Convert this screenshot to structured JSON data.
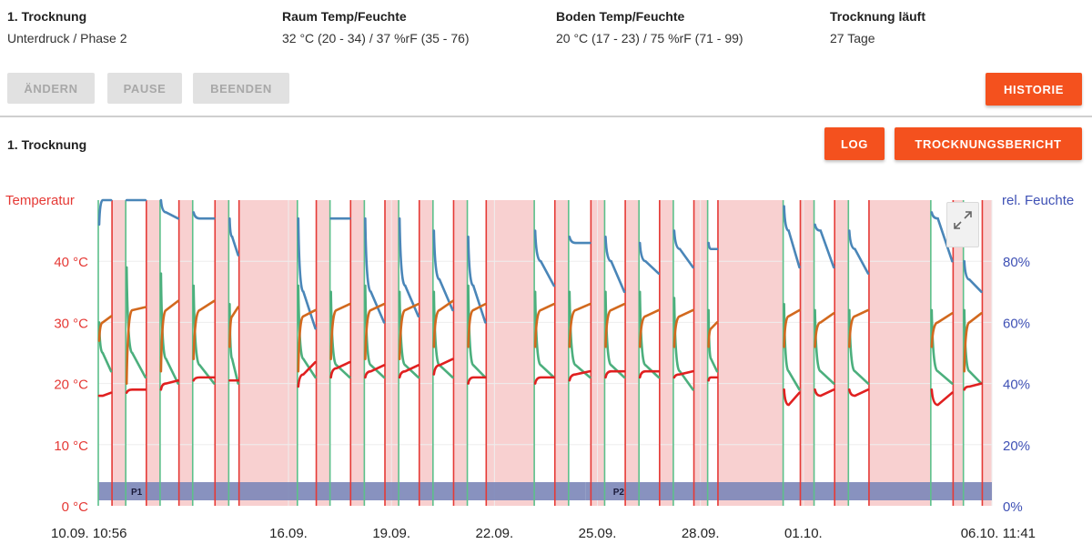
{
  "header": {
    "drying": {
      "title": "1. Trocknung",
      "value": "Unterdruck / Phase 2"
    },
    "room": {
      "title": "Raum Temp/Feuchte",
      "value": "32 °C (20 - 34) / 37 %rF (35 - 76)"
    },
    "floor": {
      "title": "Boden Temp/Feuchte",
      "value": "20 °C (17 - 23) / 75 %rF (71 - 99)"
    },
    "running": {
      "title": "Trocknung läuft",
      "value": "27 Tage"
    }
  },
  "toolbar": {
    "change_label": "ÄNDERN",
    "pause_label": "PAUSE",
    "end_label": "BEENDEN",
    "history_label": "HISTORIE"
  },
  "section": {
    "title": "1. Trocknung",
    "log_label": "LOG",
    "report_label": "TROCKNUNGSBERICHT"
  },
  "colors": {
    "accent": "#f4511e",
    "temp_axis": "#e53935",
    "humidity_axis": "#3f51b5",
    "room_humidity": "#4a86b8",
    "room_temp": "#d2691e",
    "floor_humidity": "#4caf7d",
    "floor_temp": "#e02020",
    "pause_band": "#f8d0d0",
    "phase_bar": "#7b86b8"
  },
  "chart_data": {
    "type": "line",
    "y_left_label": "Temperatur",
    "y_right_label": "rel. Feuchte",
    "y_left_ticks": [
      "0 °C",
      "10 °C",
      "20 °C",
      "30 °C",
      "40 °C"
    ],
    "y_right_ticks": [
      "0%",
      "20%",
      "40%",
      "60%",
      "80%"
    ],
    "y_left_range": [
      0,
      50
    ],
    "y_right_range": [
      0,
      100
    ],
    "x_range_days": [
      0,
      26.03
    ],
    "x_tick_labels": [
      {
        "day": 0,
        "label": "10.09. 10:56"
      },
      {
        "day": 5.54,
        "label": "16.09."
      },
      {
        "day": 8.54,
        "label": "19.09."
      },
      {
        "day": 11.54,
        "label": "22.09."
      },
      {
        "day": 14.54,
        "label": "25.09."
      },
      {
        "day": 17.54,
        "label": "28.09."
      },
      {
        "day": 20.54,
        "label": "01.10."
      },
      {
        "day": 26.03,
        "label": "06.10. 11:41"
      }
    ],
    "phases": [
      {
        "label": "P1",
        "start_day": 0,
        "end_day": 14.2
      },
      {
        "label": "P2",
        "start_day": 14.2,
        "end_day": 26.03
      }
    ],
    "cycles": [
      {
        "on": 0.0,
        "off": 0.4,
        "rh": [
          92,
          100,
          100
        ],
        "rt": [
          27,
          30,
          31
        ],
        "fh": [
          60,
          50,
          44
        ],
        "ft": [
          18,
          18,
          18.5
        ]
      },
      {
        "on": 0.8,
        "off": 1.4,
        "rh": [
          100,
          100,
          100
        ],
        "rt": [
          20,
          32,
          32.5
        ],
        "fh": [
          78,
          50,
          42
        ],
        "ft": [
          18.5,
          19,
          19
        ]
      },
      {
        "on": 1.8,
        "off": 2.35,
        "rh": [
          100,
          96,
          94
        ],
        "rt": [
          22,
          32,
          33.5
        ],
        "fh": [
          76,
          48,
          40
        ],
        "ft": [
          19,
          20,
          20.5
        ]
      },
      {
        "on": 2.75,
        "off": 3.4,
        "rh": [
          96,
          94,
          94
        ],
        "rt": [
          24,
          32,
          33.5
        ],
        "fh": [
          72,
          46,
          40
        ],
        "ft": [
          20.5,
          21,
          21
        ]
      },
      {
        "on": 3.8,
        "off": 4.1,
        "rh": [
          94,
          88,
          82
        ],
        "rt": [
          26,
          31,
          32.5
        ],
        "fh": [
          66,
          48,
          40
        ],
        "ft": [
          20.5,
          20.5,
          20.5
        ]
      },
      {
        "on": 5.8,
        "off": 6.35,
        "rh": [
          94,
          70,
          58
        ],
        "rt": [
          22,
          31,
          32
        ],
        "fh": [
          72,
          48,
          42
        ],
        "ft": [
          19.5,
          21.5,
          23.5
        ]
      },
      {
        "on": 6.75,
        "off": 7.35,
        "rh": [
          94,
          94,
          94
        ],
        "rt": [
          24,
          32,
          33
        ],
        "fh": [
          70,
          46,
          42
        ],
        "ft": [
          21,
          22.5,
          23.5
        ]
      },
      {
        "on": 7.75,
        "off": 8.35,
        "rh": [
          94,
          70,
          60
        ],
        "rt": [
          24,
          32,
          33
        ],
        "fh": [
          72,
          46,
          42
        ],
        "ft": [
          21,
          22,
          23
        ]
      },
      {
        "on": 8.75,
        "off": 9.35,
        "rh": [
          94,
          72,
          62
        ],
        "rt": [
          24,
          32,
          33
        ],
        "fh": [
          70,
          46,
          42
        ],
        "ft": [
          21,
          22,
          23
        ]
      },
      {
        "on": 9.75,
        "off": 10.35,
        "rh": [
          90,
          74,
          64
        ],
        "rt": [
          26,
          32,
          33.5
        ],
        "fh": [
          70,
          46,
          42
        ],
        "ft": [
          21.5,
          23,
          24
        ]
      },
      {
        "on": 10.75,
        "off": 11.3,
        "rh": [
          88,
          72,
          60
        ],
        "rt": [
          26,
          32,
          33
        ],
        "fh": [
          72,
          46,
          42
        ],
        "ft": [
          20,
          21,
          21
        ]
      },
      {
        "on": 12.7,
        "off": 13.3,
        "rh": [
          90,
          80,
          72
        ],
        "rt": [
          26,
          32,
          33
        ],
        "fh": [
          70,
          46,
          42
        ],
        "ft": [
          20,
          21,
          21
        ]
      },
      {
        "on": 13.7,
        "off": 14.35,
        "rh": [
          88,
          86,
          86
        ],
        "rt": [
          26,
          32,
          33
        ],
        "fh": [
          70,
          46,
          42
        ],
        "ft": [
          20.5,
          21.5,
          22
        ]
      },
      {
        "on": 14.75,
        "off": 15.35,
        "rh": [
          88,
          80,
          70
        ],
        "rt": [
          26,
          32,
          33
        ],
        "fh": [
          70,
          46,
          42
        ],
        "ft": [
          21,
          22,
          22
        ]
      },
      {
        "on": 15.75,
        "off": 16.35,
        "rh": [
          86,
          80,
          76
        ],
        "rt": [
          26,
          31,
          32
        ],
        "fh": [
          70,
          46,
          42
        ],
        "ft": [
          21,
          22,
          22
        ]
      },
      {
        "on": 16.75,
        "off": 17.35,
        "rh": [
          90,
          84,
          78
        ],
        "rt": [
          26,
          31,
          32
        ],
        "fh": [
          68,
          44,
          38
        ],
        "ft": [
          21,
          21.5,
          22
        ]
      },
      {
        "on": 17.75,
        "off": 18.05,
        "rh": [
          86,
          84,
          84
        ],
        "rt": [
          26,
          29,
          30
        ],
        "fh": [
          64,
          48,
          44
        ],
        "ft": [
          20.5,
          21,
          21
        ]
      },
      {
        "on": 19.95,
        "off": 20.45,
        "rh": [
          98,
          90,
          78
        ],
        "rt": [
          26,
          31,
          32
        ],
        "fh": [
          66,
          44,
          38
        ],
        "ft": [
          19,
          16.5,
          18.5
        ]
      },
      {
        "on": 20.85,
        "off": 21.45,
        "rh": [
          92,
          90,
          78
        ],
        "rt": [
          26,
          30,
          31.5
        ],
        "fh": [
          64,
          44,
          40
        ],
        "ft": [
          19,
          18,
          19
        ]
      },
      {
        "on": 21.85,
        "off": 22.45,
        "rh": [
          90,
          84,
          76
        ],
        "rt": [
          26,
          31,
          32
        ],
        "fh": [
          64,
          44,
          40
        ],
        "ft": [
          19,
          18,
          19
        ]
      },
      {
        "on": 24.25,
        "off": 24.9,
        "rh": [
          96,
          94,
          80
        ],
        "rt": [
          26,
          30,
          31.5
        ],
        "fh": [
          64,
          44,
          40
        ],
        "ft": [
          19,
          16.5,
          18.5
        ]
      },
      {
        "on": 25.2,
        "off": 25.75,
        "rh": [
          80,
          74,
          70
        ],
        "rt": [
          22,
          30,
          31.5
        ],
        "fh": [
          64,
          44,
          40
        ],
        "ft": [
          19,
          19.5,
          20
        ]
      }
    ]
  }
}
